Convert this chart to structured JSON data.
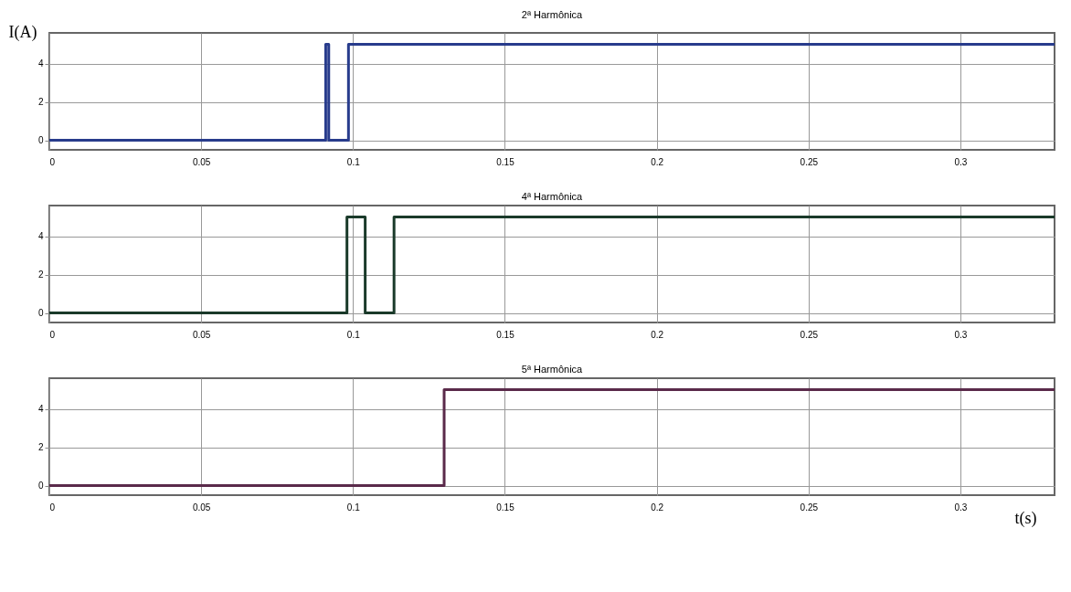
{
  "chart_data": [
    {
      "type": "step",
      "title": "2ª Harmônica",
      "ylabel": "I(A)",
      "xlim": [
        0,
        0.331
      ],
      "xticks": [
        0,
        0.05,
        0.1,
        0.15,
        0.2,
        0.25,
        0.3
      ],
      "ylim": [
        -0.5,
        5.6
      ],
      "yticks": [
        0,
        2,
        4
      ],
      "grid": true,
      "series": [
        {
          "color": "#283c8c",
          "x": [
            0,
            0.091,
            0.092,
            0.0985,
            0.331
          ],
          "values": [
            0,
            5,
            0,
            5,
            5
          ]
        }
      ]
    },
    {
      "type": "step",
      "title": "4ª Harmônica",
      "xlim": [
        0,
        0.331
      ],
      "xticks": [
        0,
        0.05,
        0.1,
        0.15,
        0.2,
        0.25,
        0.3
      ],
      "ylim": [
        -0.5,
        5.6
      ],
      "yticks": [
        0,
        2,
        4
      ],
      "grid": true,
      "series": [
        {
          "color": "#1a3a2a",
          "x": [
            0,
            0.098,
            0.104,
            0.1135,
            0.331
          ],
          "values": [
            0,
            5,
            0,
            5,
            5
          ]
        }
      ]
    },
    {
      "type": "step",
      "title": "5ª Harmônica",
      "xlabel": "t(s)",
      "xlim": [
        0,
        0.331
      ],
      "xticks": [
        0,
        0.05,
        0.1,
        0.15,
        0.2,
        0.25,
        0.3
      ],
      "ylim": [
        -0.5,
        5.6
      ],
      "yticks": [
        0,
        2,
        4
      ],
      "grid": true,
      "series": [
        {
          "color": "#5a2a4a",
          "x": [
            0,
            0.13,
            0.331
          ],
          "values": [
            0,
            5,
            5
          ]
        }
      ]
    }
  ]
}
